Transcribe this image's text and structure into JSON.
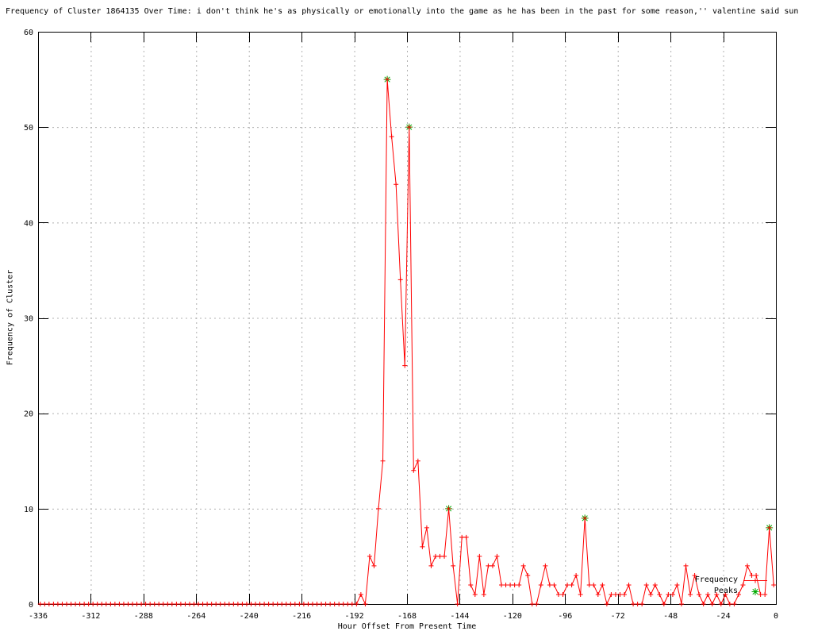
{
  "chart_data": {
    "type": "line",
    "title": "Frequency of Cluster 1864135 Over Time: i don't think he's as physically or emotionally into the game as he has been in the past for some reason,'' valentine said sun",
    "xlabel": "Hour Offset From Present Time",
    "ylabel": "Frequency of Cluster",
    "xlim": [
      -336,
      0
    ],
    "ylim": [
      0,
      60
    ],
    "xticks": [
      -336,
      -312,
      -288,
      -264,
      -240,
      -216,
      -192,
      -168,
      -144,
      -120,
      -96,
      -72,
      -48,
      -24,
      0
    ],
    "yticks": [
      0,
      10,
      20,
      30,
      40,
      50,
      60
    ],
    "grid": true,
    "legend_position": "inside-bottom-right",
    "colors": {
      "border": "#000000",
      "grid": "#b0b0b0",
      "frequency": "#ff0000",
      "peaks": "#00aa00"
    },
    "series": [
      {
        "name": "Frequency",
        "marker": "plus",
        "color": "#ff0000",
        "points": [
          [
            -335,
            0
          ],
          [
            -333,
            0
          ],
          [
            -331,
            0
          ],
          [
            -329,
            0
          ],
          [
            -327,
            0
          ],
          [
            -325,
            0
          ],
          [
            -323,
            0
          ],
          [
            -321,
            0
          ],
          [
            -319,
            0
          ],
          [
            -317,
            0
          ],
          [
            -315,
            0
          ],
          [
            -313,
            0
          ],
          [
            -311,
            0
          ],
          [
            -309,
            0
          ],
          [
            -307,
            0
          ],
          [
            -305,
            0
          ],
          [
            -303,
            0
          ],
          [
            -301,
            0
          ],
          [
            -299,
            0
          ],
          [
            -297,
            0
          ],
          [
            -295,
            0
          ],
          [
            -293,
            0
          ],
          [
            -291,
            0
          ],
          [
            -289,
            0
          ],
          [
            -287,
            0
          ],
          [
            -285,
            0
          ],
          [
            -283,
            0
          ],
          [
            -281,
            0
          ],
          [
            -279,
            0
          ],
          [
            -277,
            0
          ],
          [
            -275,
            0
          ],
          [
            -273,
            0
          ],
          [
            -271,
            0
          ],
          [
            -269,
            0
          ],
          [
            -267,
            0
          ],
          [
            -265,
            0
          ],
          [
            -263,
            0
          ],
          [
            -261,
            0
          ],
          [
            -259,
            0
          ],
          [
            -257,
            0
          ],
          [
            -255,
            0
          ],
          [
            -253,
            0
          ],
          [
            -251,
            0
          ],
          [
            -249,
            0
          ],
          [
            -247,
            0
          ],
          [
            -245,
            0
          ],
          [
            -243,
            0
          ],
          [
            -241,
            0
          ],
          [
            -239,
            0
          ],
          [
            -237,
            0
          ],
          [
            -235,
            0
          ],
          [
            -233,
            0
          ],
          [
            -231,
            0
          ],
          [
            -229,
            0
          ],
          [
            -227,
            0
          ],
          [
            -225,
            0
          ],
          [
            -223,
            0
          ],
          [
            -221,
            0
          ],
          [
            -219,
            0
          ],
          [
            -217,
            0
          ],
          [
            -215,
            0
          ],
          [
            -213,
            0
          ],
          [
            -211,
            0
          ],
          [
            -209,
            0
          ],
          [
            -207,
            0
          ],
          [
            -205,
            0
          ],
          [
            -203,
            0
          ],
          [
            -201,
            0
          ],
          [
            -199,
            0
          ],
          [
            -197,
            0
          ],
          [
            -195,
            0
          ],
          [
            -193,
            0
          ],
          [
            -191,
            0
          ],
          [
            -189,
            1
          ],
          [
            -187,
            0
          ],
          [
            -185,
            5
          ],
          [
            -183,
            4
          ],
          [
            -181,
            10
          ],
          [
            -179,
            15
          ],
          [
            -177,
            55
          ],
          [
            -175,
            49
          ],
          [
            -173,
            44
          ],
          [
            -171,
            34
          ],
          [
            -169,
            25
          ],
          [
            -167,
            50
          ],
          [
            -165,
            14
          ],
          [
            -163,
            15
          ],
          [
            -161,
            6
          ],
          [
            -159,
            8
          ],
          [
            -157,
            4
          ],
          [
            -155,
            5
          ],
          [
            -153,
            5
          ],
          [
            -151,
            5
          ],
          [
            -149,
            10
          ],
          [
            -147,
            4
          ],
          [
            -145,
            0
          ],
          [
            -143,
            7
          ],
          [
            -141,
            7
          ],
          [
            -139,
            2
          ],
          [
            -137,
            1
          ],
          [
            -135,
            5
          ],
          [
            -133,
            1
          ],
          [
            -131,
            4
          ],
          [
            -129,
            4
          ],
          [
            -127,
            5
          ],
          [
            -125,
            2
          ],
          [
            -123,
            2
          ],
          [
            -121,
            2
          ],
          [
            -119,
            2
          ],
          [
            -117,
            2
          ],
          [
            -115,
            4
          ],
          [
            -113,
            3
          ],
          [
            -111,
            0
          ],
          [
            -109,
            0
          ],
          [
            -107,
            2
          ],
          [
            -105,
            4
          ],
          [
            -103,
            2
          ],
          [
            -101,
            2
          ],
          [
            -99,
            1
          ],
          [
            -97,
            1
          ],
          [
            -95,
            2
          ],
          [
            -93,
            2
          ],
          [
            -91,
            3
          ],
          [
            -89,
            1
          ],
          [
            -87,
            9
          ],
          [
            -85,
            2
          ],
          [
            -83,
            2
          ],
          [
            -81,
            1
          ],
          [
            -79,
            2
          ],
          [
            -77,
            0
          ],
          [
            -75,
            1
          ],
          [
            -73,
            1
          ],
          [
            -71,
            1
          ],
          [
            -69,
            1
          ],
          [
            -67,
            2
          ],
          [
            -65,
            0
          ],
          [
            -63,
            0
          ],
          [
            -61,
            0
          ],
          [
            -59,
            2
          ],
          [
            -57,
            1
          ],
          [
            -55,
            2
          ],
          [
            -53,
            1
          ],
          [
            -51,
            0
          ],
          [
            -49,
            1
          ],
          [
            -47,
            1
          ],
          [
            -45,
            2
          ],
          [
            -43,
            0
          ],
          [
            -41,
            4
          ],
          [
            -39,
            1
          ],
          [
            -37,
            3
          ],
          [
            -35,
            1
          ],
          [
            -33,
            0
          ],
          [
            -31,
            1
          ],
          [
            -29,
            0
          ],
          [
            -27,
            1
          ],
          [
            -25,
            0
          ],
          [
            -23,
            1
          ],
          [
            -21,
            0
          ],
          [
            -19,
            0
          ],
          [
            -17,
            1
          ],
          [
            -15,
            2
          ],
          [
            -13,
            4
          ],
          [
            -11,
            3
          ],
          [
            -9,
            3
          ],
          [
            -7,
            1
          ],
          [
            -5,
            1
          ],
          [
            -3,
            8
          ],
          [
            -1,
            2
          ]
        ]
      },
      {
        "name": "Peaks",
        "marker": "star",
        "color": "#00aa00",
        "points": [
          [
            -177,
            55
          ],
          [
            -167,
            50
          ],
          [
            -149,
            10
          ],
          [
            -87,
            9
          ],
          [
            -3,
            8
          ]
        ]
      }
    ]
  }
}
